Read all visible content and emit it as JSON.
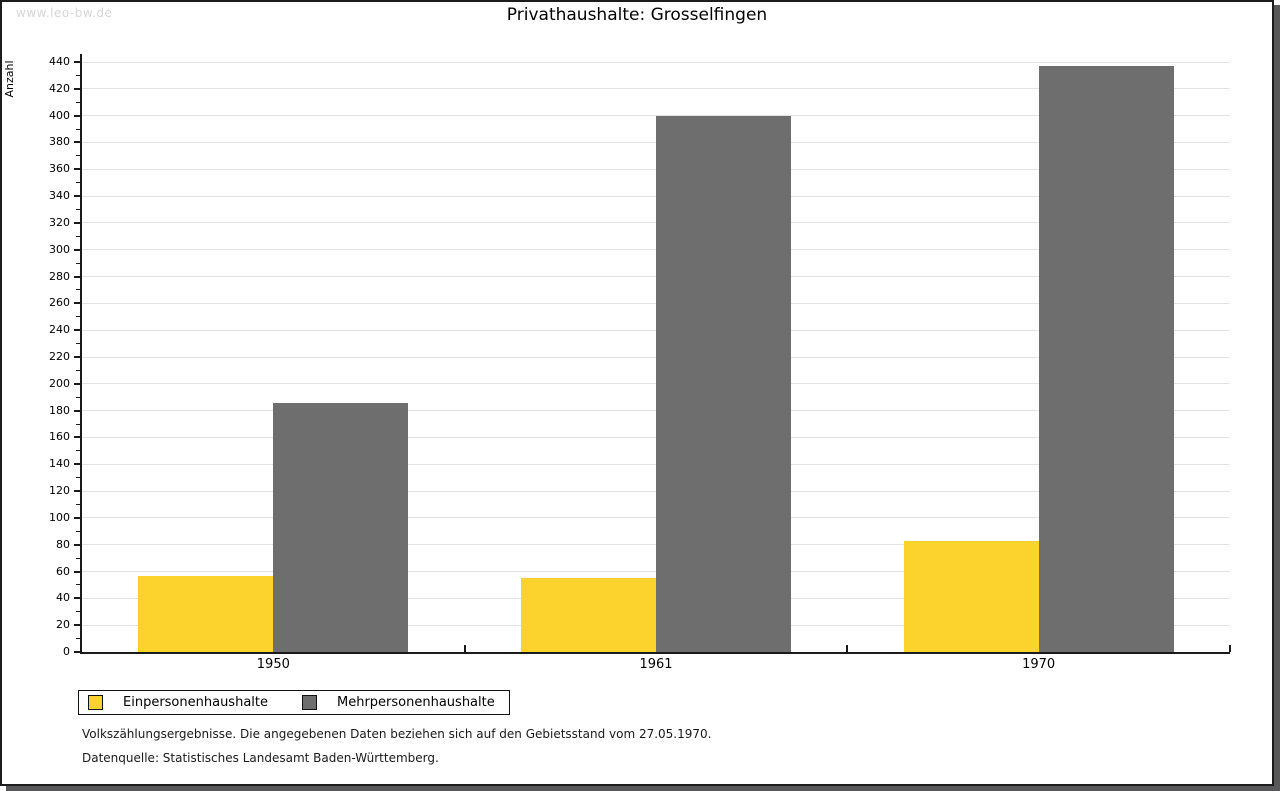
{
  "watermark": "www.leo-bw.de",
  "title": "Privathaushalte: Grosselfingen",
  "chart_data": {
    "type": "bar",
    "title": "Privathaushalte: Grosselfingen",
    "xlabel": "",
    "ylabel": "Anzahl",
    "categories": [
      "1950",
      "1961",
      "1970"
    ],
    "series": [
      {
        "name": "Einpersonenhaushalte",
        "color": "#fcd32c",
        "values": [
          57,
          55,
          83
        ]
      },
      {
        "name": "Mehrpersonenhaushalte",
        "color": "#6e6e6e",
        "values": [
          186,
          400,
          437
        ]
      }
    ],
    "ylim": [
      0,
      440
    ],
    "ytick_major_step": 20,
    "ytick_minor_step": 10,
    "grid": true,
    "legend_position": "bottom-left"
  },
  "footer": {
    "line1": "Volkszählungsergebnisse. Die angegebenen Daten beziehen sich auf den Gebietsstand vom 27.05.1970.",
    "line2": "Datenquelle: Statistisches Landesamt Baden-Württemberg."
  }
}
